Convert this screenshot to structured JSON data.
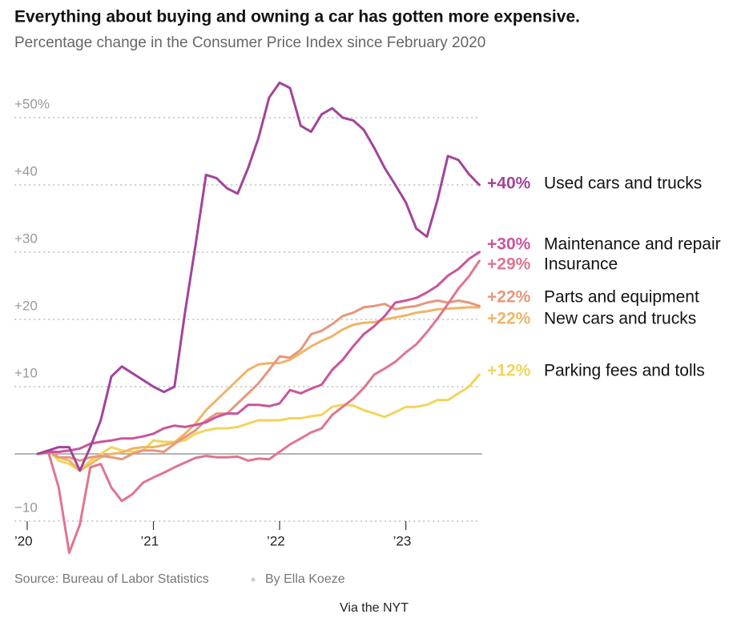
{
  "chart_data": {
    "type": "line",
    "title": "Everything about buying and owning a car has gotten more expensive.",
    "subtitle": "Percentage change in the Consumer Price Index since February 2020",
    "source": "Source: Bureau of Labor Statistics",
    "byline": "By Ella Koeze",
    "credit": "Via the NYT",
    "x": [
      2020.083,
      2020.167,
      2020.25,
      2020.333,
      2020.417,
      2020.5,
      2020.583,
      2020.667,
      2020.75,
      2020.833,
      2020.917,
      2021,
      2021.083,
      2021.167,
      2021.25,
      2021.333,
      2021.417,
      2021.5,
      2021.583,
      2021.667,
      2021.75,
      2021.833,
      2021.917,
      2022,
      2022.083,
      2022.167,
      2022.25,
      2022.333,
      2022.417,
      2022.5,
      2022.583,
      2022.667,
      2022.75,
      2022.833,
      2022.917,
      2023,
      2023.083,
      2023.167,
      2023.25,
      2023.333,
      2023.417,
      2023.5,
      2023.583
    ],
    "xlim": [
      2019.9,
      2023.65
    ],
    "xticks": [
      {
        "value": 2020,
        "label": "’20"
      },
      {
        "value": 2021,
        "label": "’21"
      },
      {
        "value": 2022,
        "label": "’22"
      },
      {
        "value": 2023,
        "label": "’23"
      }
    ],
    "ylim": [
      -11,
      56
    ],
    "yticks": [
      {
        "value": -10,
        "label": "−10"
      },
      {
        "value": 10,
        "label": "+10"
      },
      {
        "value": 20,
        "label": "+20"
      },
      {
        "value": 30,
        "label": "+30"
      },
      {
        "value": 40,
        "label": "+40"
      },
      {
        "value": 50,
        "label": "+50%"
      }
    ],
    "grid": true,
    "series": [
      {
        "name": "Used cars and trucks",
        "color": "#a1449a",
        "label": "+40%",
        "label_value": 40,
        "values": [
          0,
          0.5,
          1,
          1,
          -2.5,
          1,
          5,
          11.5,
          13,
          12,
          11,
          10,
          9.2,
          10,
          21,
          31,
          41.5,
          41,
          39.5,
          38.7,
          42.5,
          47,
          53,
          55.2,
          54.4,
          48.8,
          47.9,
          50.5,
          51.4,
          50,
          49.6,
          48.2,
          45.5,
          42.5,
          40,
          37.4,
          33.5,
          32.3,
          37.7,
          44.3,
          43.7,
          41.6,
          40
        ]
      },
      {
        "name": "Maintenance and repair",
        "color": "#c9559c",
        "label": "+30%",
        "label_value": 30,
        "values": [
          0,
          0.3,
          0.3,
          0.5,
          0.8,
          1.5,
          1.8,
          2,
          2.3,
          2.3,
          2.6,
          3,
          3.8,
          4.2,
          4,
          4.3,
          4.7,
          5.5,
          6,
          6,
          7.3,
          7.3,
          7.1,
          7.5,
          9.5,
          9,
          9.7,
          10.3,
          12.5,
          14,
          16,
          17.8,
          19,
          20.5,
          22.5,
          22.8,
          23.2,
          24,
          25,
          26.5,
          27.5,
          29,
          30
        ]
      },
      {
        "name": "Insurance",
        "color": "#df7590",
        "label": "+29%",
        "label_value": 29,
        "values": [
          0,
          0.3,
          -5,
          -14.7,
          -10.5,
          -2,
          -1.5,
          -5,
          -7,
          -6,
          -4.3,
          -3.5,
          -2.8,
          -2,
          -1.3,
          -0.6,
          -0.3,
          -0.5,
          -0.5,
          -0.4,
          -1,
          -0.7,
          -0.8,
          0.3,
          1.4,
          2.3,
          3.2,
          3.8,
          5.8,
          7,
          8.2,
          9.8,
          11.8,
          12.7,
          13.7,
          15.1,
          16.3,
          18.1,
          20.1,
          22.3,
          24.6,
          26.4,
          28.7
        ]
      },
      {
        "name": "Parts and equipment",
        "color": "#e7977a",
        "label": "+22%",
        "label_value": 22,
        "values": [
          0,
          0.5,
          -0.5,
          -0.5,
          -1,
          -0.5,
          -0.3,
          -0.5,
          -0.8,
          0,
          0.5,
          0.5,
          0.3,
          1.5,
          2.5,
          3.5,
          5,
          6,
          6,
          7.5,
          9,
          10.5,
          12.5,
          14.5,
          14.3,
          15.5,
          17.8,
          18.3,
          19.3,
          20.5,
          21,
          21.8,
          22,
          22.3,
          21.5,
          21.8,
          22,
          22.5,
          22.8,
          22.5,
          22.8,
          22.5,
          22
        ]
      },
      {
        "name": "New cars and trucks",
        "color": "#f0b466",
        "label": "+22%",
        "label_value": 22,
        "values": [
          0,
          0.2,
          -0.5,
          -1,
          -2.5,
          -1.5,
          -0.5,
          0,
          0.2,
          0.8,
          1,
          1,
          1.3,
          1.7,
          3,
          4.5,
          6.5,
          8,
          9.5,
          11,
          12.5,
          13.3,
          13.5,
          13.5,
          14,
          15,
          16,
          16.8,
          17.5,
          18.5,
          19.2,
          19.5,
          19.6,
          20,
          20.3,
          20.6,
          21,
          21.2,
          21.5,
          21.6,
          21.7,
          21.8,
          21.8
        ]
      },
      {
        "name": "Parking fees and tolls",
        "color": "#f2d45c",
        "label": "+12%",
        "label_value": 12,
        "values": [
          0,
          0.5,
          -1,
          -1.5,
          -2.5,
          -1,
          0,
          1,
          0.5,
          0.3,
          0.5,
          2,
          1.8,
          1.8,
          2,
          3,
          3.5,
          3.8,
          3.8,
          4,
          4.5,
          5,
          5,
          5,
          5.3,
          5.3,
          5.6,
          5.8,
          7,
          7.3,
          7.2,
          6.5,
          6,
          5.5,
          6.2,
          7,
          7,
          7.3,
          8,
          8,
          9,
          10,
          11.8
        ]
      }
    ]
  }
}
